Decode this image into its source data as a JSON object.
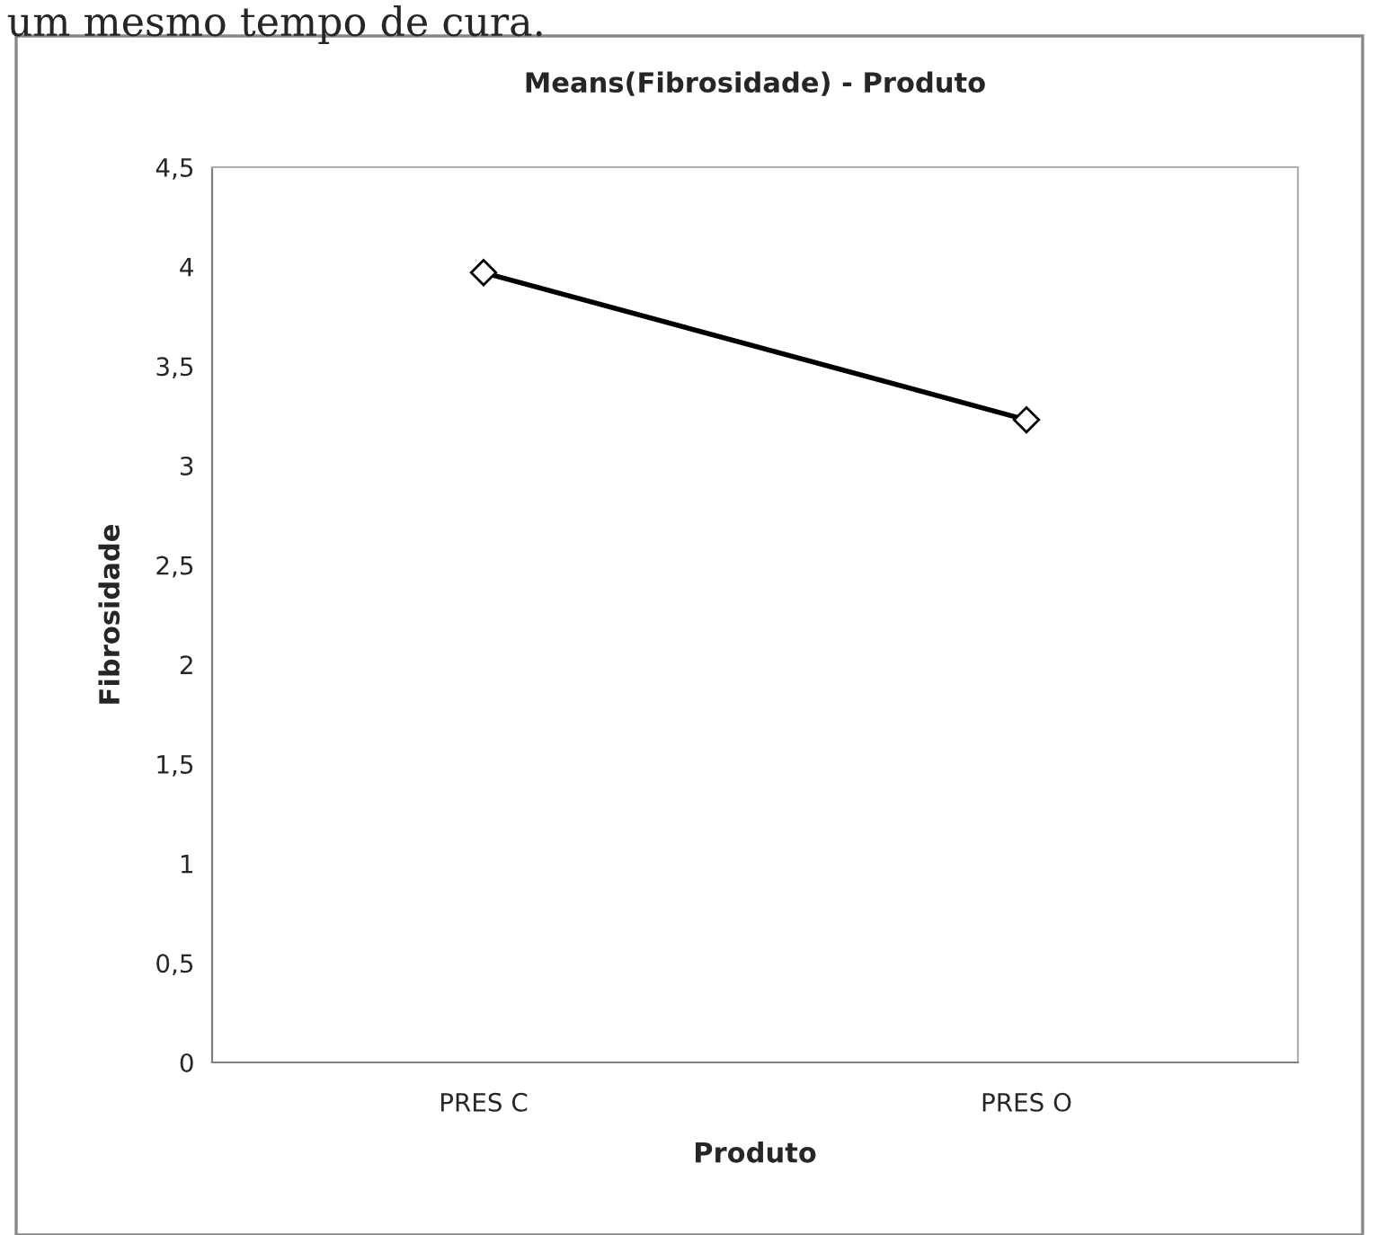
{
  "chart_data": {
    "type": "line",
    "title": "Means(Fibrosidade) - Produto",
    "xlabel": "Produto",
    "ylabel": "Fibrosidade",
    "categories": [
      "PRES C",
      "PRES O"
    ],
    "series": [
      {
        "color": "#000000",
        "values": [
          3.97,
          3.23
        ]
      }
    ],
    "ylim": [
      0,
      4.5
    ],
    "yticks": [
      0,
      {
        "value": 0.5,
        "label": "0,5"
      },
      1,
      {
        "value": 1.5,
        "label": "1,5"
      },
      2,
      {
        "value": 2.5,
        "label": "2,5"
      },
      3,
      {
        "value": 3.5,
        "label": "3,5"
      },
      4,
      {
        "value": 4.5,
        "label": "4,5"
      }
    ],
    "marker": "diamond",
    "line_style": "solid",
    "grid": false,
    "legend": false,
    "annotations": [
      "um mesmo tempo de cura."
    ]
  }
}
